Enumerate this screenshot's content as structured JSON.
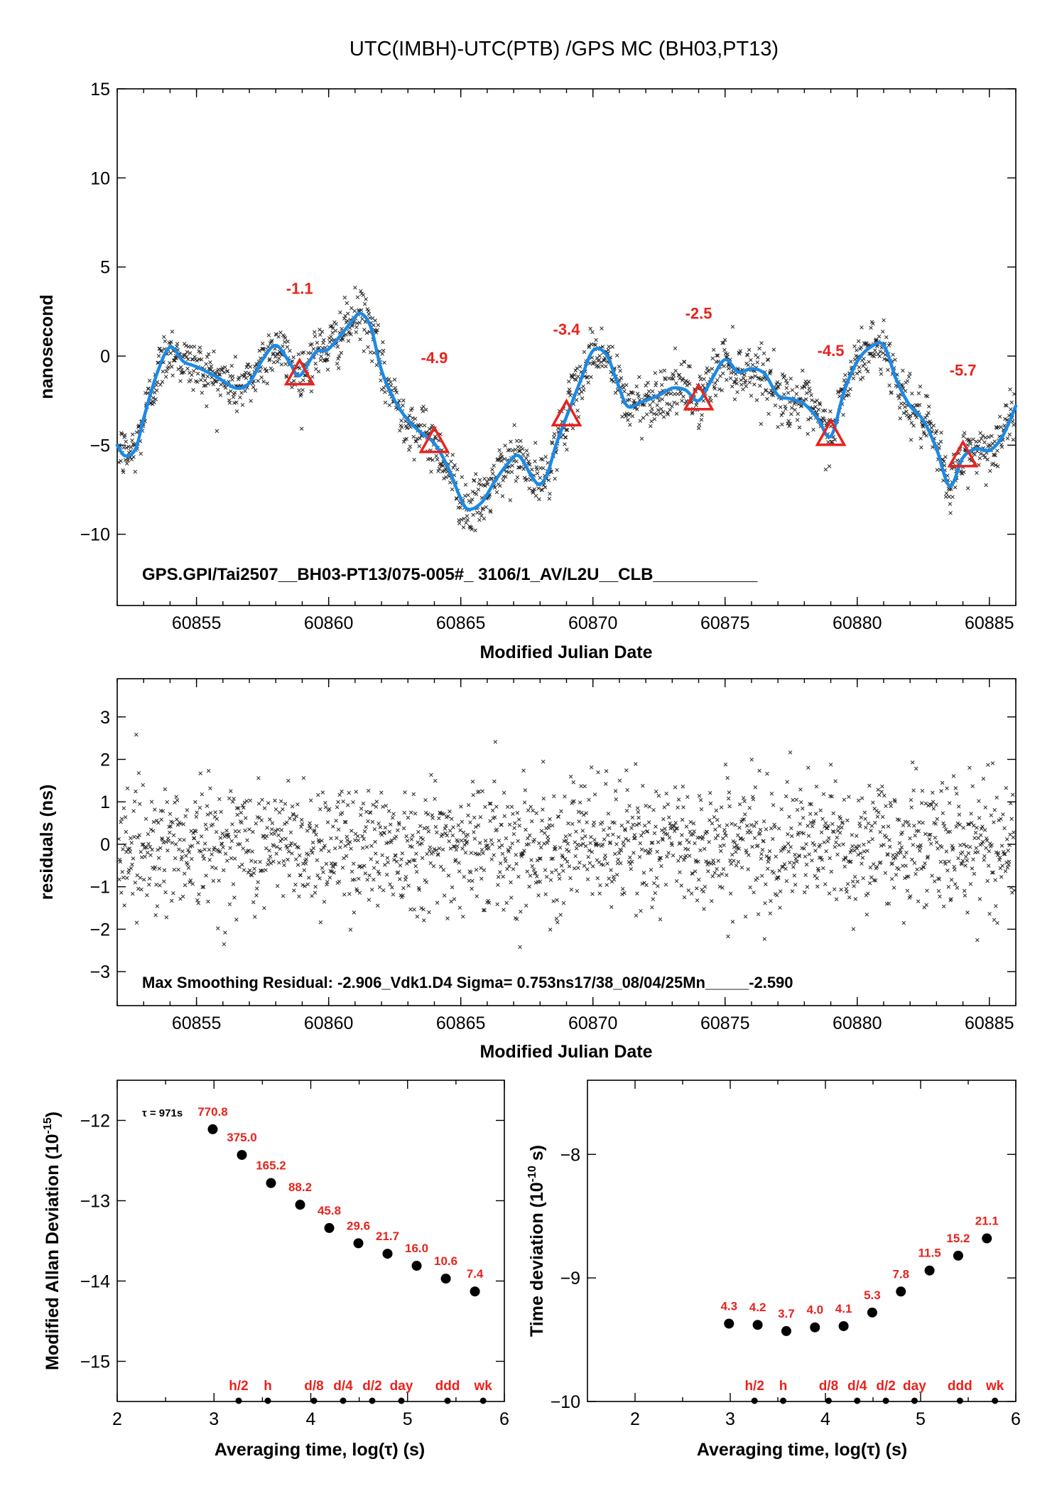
{
  "page_title": "UTC(IMBH)-UTC(PTB)  /GPS  MC  (BH03,PT13)",
  "colors": {
    "smooth_line": "#1a8ae6",
    "marker": "#e8231d",
    "points": "#000000",
    "red_text": "#e8231d"
  },
  "chart_data": [
    {
      "id": "time_series",
      "type": "scatter",
      "xlabel": "Modified Julian Date",
      "ylabel": "nanosecond",
      "xlim": [
        60852,
        60886
      ],
      "ylim": [
        -14,
        15
      ],
      "xticks": [
        60855,
        60860,
        60865,
        60870,
        60875,
        60880,
        60885
      ],
      "yticks": [
        -10,
        -5,
        0,
        5,
        10,
        15
      ],
      "smooth_curve": {
        "x": [
          60852.0,
          60852.3,
          60852.7,
          60853.0,
          60853.5,
          60854.0,
          60854.5,
          60855.0,
          60855.8,
          60856.5,
          60857.0,
          60857.5,
          60858.0,
          60858.5,
          60858.9,
          60859.5,
          60860.0,
          60860.8,
          60861.2,
          60861.6,
          60862.0,
          60862.5,
          60863.0,
          60863.5,
          60864.0,
          60864.5,
          60865.0,
          60865.3,
          60865.8,
          60866.3,
          60866.8,
          60867.2,
          60867.7,
          60868.0,
          60868.3,
          60868.6,
          60869.0,
          60869.5,
          60870.0,
          60870.5,
          60870.9,
          60871.3,
          60871.8,
          60872.5,
          60873.0,
          60873.5,
          60874.0,
          60874.5,
          60875.0,
          60875.5,
          60876.0,
          60876.5,
          60877.0,
          60877.5,
          60878.0,
          60878.5,
          60879.0,
          60879.5,
          60880.0,
          60880.5,
          60881.0,
          60881.5,
          60882.0,
          60882.5,
          60883.0,
          60883.5,
          60884.0,
          60884.5,
          60885.0,
          60885.5,
          60886.0
        ],
        "y": [
          -5.0,
          -5.6,
          -5.2,
          -3.5,
          -1.0,
          0.5,
          -0.3,
          -0.6,
          -1.2,
          -1.8,
          -1.5,
          -0.2,
          0.6,
          -0.3,
          -1.1,
          0.2,
          0.4,
          1.8,
          2.4,
          1.6,
          -0.8,
          -2.5,
          -3.6,
          -4.3,
          -4.9,
          -6.2,
          -8.0,
          -8.6,
          -8.2,
          -7.0,
          -6.0,
          -5.6,
          -6.8,
          -7.2,
          -6.5,
          -5.0,
          -3.4,
          -1.5,
          0.3,
          0.1,
          -1.4,
          -2.8,
          -2.6,
          -2.2,
          -1.8,
          -1.9,
          -2.5,
          -1.3,
          -0.2,
          -0.9,
          -0.7,
          -1.0,
          -2.2,
          -2.4,
          -2.7,
          -3.5,
          -4.5,
          -2.0,
          -0.3,
          0.5,
          0.6,
          -1.4,
          -2.8,
          -3.6,
          -5.2,
          -7.3,
          -5.7,
          -5.2,
          -5.3,
          -4.5,
          -2.8
        ]
      },
      "markers": [
        {
          "x": 60858.9,
          "y": -1.1,
          "label": "-1.1",
          "label_x": 60858.9,
          "label_y": 3.5
        },
        {
          "x": 60864.0,
          "y": -4.9,
          "label": "-4.9",
          "label_x": 60864.0,
          "label_y": -0.4
        },
        {
          "x": 60869.0,
          "y": -3.4,
          "label": "-3.4",
          "label_x": 60869.0,
          "label_y": 1.2
        },
        {
          "x": 60874.0,
          "y": -2.5,
          "label": "-2.5",
          "label_x": 60874.0,
          "label_y": 2.1
        },
        {
          "x": 60879.0,
          "y": -4.5,
          "label": "-4.5",
          "label_x": 60879.0,
          "label_y": 0.0
        },
        {
          "x": 60884.0,
          "y": -5.7,
          "label": "-5.7",
          "label_x": 60884.0,
          "label_y": -1.1
        }
      ],
      "point_spread_ns": 0.75,
      "annotation": "GPS.GPI/Tai2507__BH03-PT13/075-005#_  3106/1_AV/L2U__CLB___________"
    },
    {
      "id": "residuals",
      "type": "scatter",
      "xlabel": "Modified Julian Date",
      "ylabel": "residuals (ns)",
      "xlim": [
        60852,
        60886
      ],
      "ylim": [
        -3.8,
        3.9
      ],
      "xticks": [
        60855,
        60860,
        60865,
        60870,
        60875,
        60880,
        60885
      ],
      "yticks": [
        -3,
        -2,
        -1,
        0,
        1,
        2,
        3
      ],
      "sigma_ns": 0.753,
      "annotation": "Max Smoothing Residual: -2.906_Vdk1.D4  Sigma= 0.753ns17/38_08/04/25Mn_____-2.590"
    },
    {
      "id": "mdev",
      "type": "scatter",
      "xlabel": "Averaging time, log(τ) (s)",
      "ylabel_main": "Modified Allan Deviation (10",
      "ylabel_exp": "-15",
      "ylabel_tail": ")",
      "xlim": [
        2,
        6
      ],
      "ylim": [
        -15.5,
        -11.5
      ],
      "xticks": [
        2,
        3,
        4,
        5,
        6
      ],
      "yticks": [
        -12,
        -13,
        -14,
        -15
      ],
      "tau_note": "τ = 971s",
      "x": [
        2.987,
        3.288,
        3.589,
        3.89,
        4.191,
        4.492,
        4.793,
        5.094,
        5.395,
        5.696
      ],
      "y": [
        -12.11,
        -12.43,
        -12.78,
        -13.05,
        -13.34,
        -13.53,
        -13.66,
        -13.81,
        -13.97,
        -14.13
      ],
      "labels": [
        "770.8",
        "375.0",
        "165.2",
        "88.2",
        "45.8",
        "29.6",
        "21.7",
        "16.0",
        "10.6",
        "7.4"
      ],
      "marker_labels": [
        "h/2",
        "h",
        "d/8",
        "d/4",
        "d/2",
        "day",
        "ddd",
        "wk"
      ],
      "marker_x": [
        3.255,
        3.556,
        4.033,
        4.334,
        4.635,
        4.936,
        5.413,
        5.781
      ]
    },
    {
      "id": "tdev",
      "type": "scatter",
      "xlabel": "Averaging time, log(τ) (s)",
      "ylabel_main": "Time deviation (10",
      "ylabel_exp": "-10",
      "ylabel_tail": " s)",
      "xlim": [
        1.5,
        6
      ],
      "ylim": [
        -10,
        -7.4
      ],
      "xticks": [
        2,
        3,
        4,
        5,
        6
      ],
      "yticks": [
        -8,
        -9,
        -10
      ],
      "x": [
        2.987,
        3.288,
        3.589,
        3.89,
        4.191,
        4.492,
        4.793,
        5.094,
        5.395,
        5.696
      ],
      "y": [
        -9.37,
        -9.38,
        -9.43,
        -9.4,
        -9.39,
        -9.28,
        -9.11,
        -8.94,
        -8.82,
        -8.68
      ],
      "labels": [
        "4.3",
        "4.2",
        "3.7",
        "4.0",
        "4.1",
        "5.3",
        "7.8",
        "11.5",
        "15.2",
        "21.1"
      ],
      "marker_labels": [
        "h/2",
        "h",
        "d/8",
        "d/4",
        "d/2",
        "day",
        "ddd",
        "wk"
      ],
      "marker_x": [
        3.255,
        3.556,
        4.033,
        4.334,
        4.635,
        4.936,
        5.413,
        5.781
      ]
    }
  ]
}
